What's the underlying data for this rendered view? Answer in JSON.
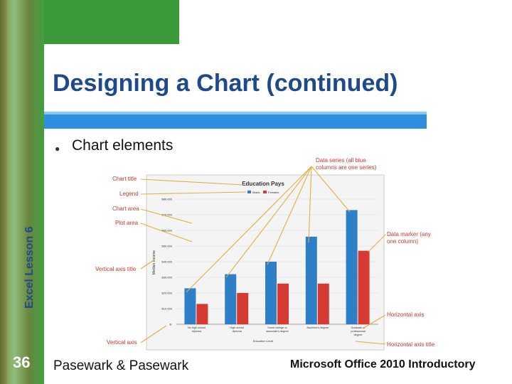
{
  "slide": {
    "title": "Designing a Chart (continued)",
    "bullet": "Chart elements",
    "side_label": "Excel Lesson 6",
    "slide_number": "36",
    "footer_left": "Pasewark & Pasewark",
    "footer_right": "Microsoft Office 2010 Introductory"
  },
  "callouts": {
    "chart_title": "Chart title",
    "legend": "Legend",
    "chart_area": "Chart area",
    "plot_area": "Plot area",
    "vertical_axis_title": "Vertical axis title",
    "vertical_axis": "Vertical axis",
    "data_series_1": "Data series (all blue",
    "data_series_2": "columns are one series)",
    "data_marker_1": "Data marker (any",
    "data_marker_2": "one column)",
    "horizontal_axis": "Horizontal axis",
    "horizontal_axis_title": "Horizontal axis title"
  },
  "colors": {
    "series_blue": "#2f7fc8",
    "series_red": "#d63a32",
    "callout": "#c0392b",
    "arrow": "#e0b040"
  },
  "chart_data": {
    "type": "bar",
    "title": "Education Pays",
    "xlabel": "Education Level",
    "ylabel": "Median Income",
    "categories": [
      "No high school diploma",
      "High school diploma",
      "Some college or associate's degree",
      "Bachelor's degree",
      "Graduate or professional degree"
    ],
    "series": [
      {
        "name": "Males",
        "values": [
          23000,
          32000,
          40000,
          56000,
          73000
        ]
      },
      {
        "name": "Females",
        "values": [
          13000,
          20000,
          26000,
          26000,
          47000
        ]
      }
    ],
    "y_ticks": [
      "$-",
      "$10,000",
      "$20,000",
      "$30,000",
      "$40,000",
      "$50,000",
      "$60,000",
      "$70,000",
      "$80,000"
    ],
    "ylim": [
      0,
      80000
    ],
    "legend_position": "top"
  }
}
